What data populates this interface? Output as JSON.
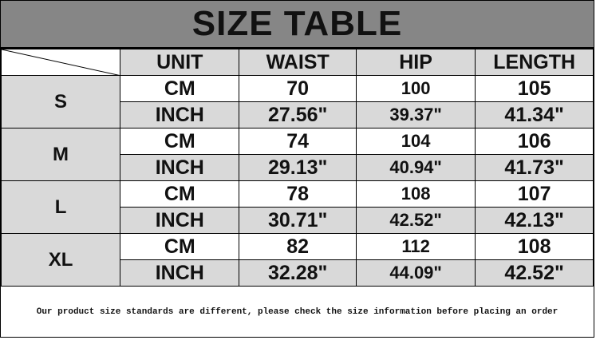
{
  "title": "SIZE TABLE",
  "headers": [
    "UNIT",
    "WAIST",
    "HIP",
    "LENGTH"
  ],
  "rows": [
    {
      "size": "S",
      "cm": {
        "unit": "CM",
        "waist": "70",
        "hip": "100",
        "length": "105"
      },
      "inch": {
        "unit": "INCH",
        "waist": "27.56\"",
        "hip": "39.37\"",
        "length": "41.34\""
      }
    },
    {
      "size": "M",
      "cm": {
        "unit": "CM",
        "waist": "74",
        "hip": "104",
        "length": "106"
      },
      "inch": {
        "unit": "INCH",
        "waist": "29.13\"",
        "hip": "40.94\"",
        "length": "41.73\""
      }
    },
    {
      "size": "L",
      "cm": {
        "unit": "CM",
        "waist": "78",
        "hip": "108",
        "length": "107"
      },
      "inch": {
        "unit": "INCH",
        "waist": "30.71\"",
        "hip": "42.52\"",
        "length": "42.13\""
      }
    },
    {
      "size": "XL",
      "cm": {
        "unit": "CM",
        "waist": "82",
        "hip": "112",
        "length": "108"
      },
      "inch": {
        "unit": "INCH",
        "waist": "32.28\"",
        "hip": "44.09\"",
        "length": "42.52\""
      }
    }
  ],
  "footer": "Our product size standards are different, please check the size information before placing an order",
  "colors": {
    "title_bg": "#868686",
    "gray_cell": "#d9d9d9"
  }
}
